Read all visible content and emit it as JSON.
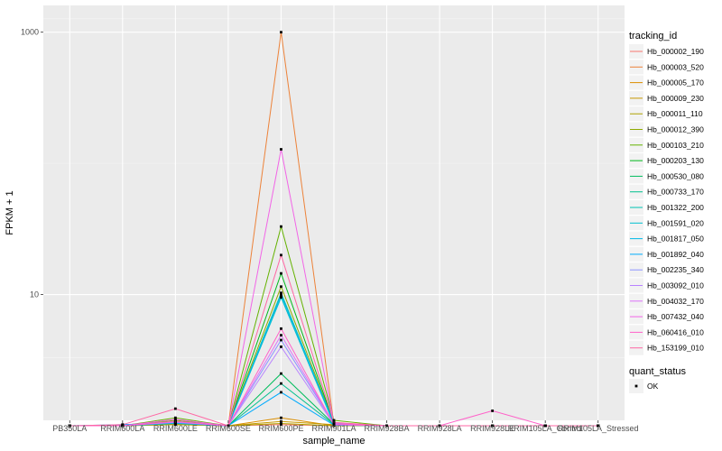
{
  "chart_data": {
    "type": "line",
    "xlabel": "sample_name",
    "ylabel": "FPKM + 1",
    "y_scale": "log10",
    "ylim": [
      1.1,
      1600
    ],
    "y_ticks": [
      10,
      1000
    ],
    "y_tick_labels": [
      "10",
      "1000"
    ],
    "grid": true,
    "background": "#ebebeb",
    "legend_position": "right",
    "categories": [
      "PB350LA",
      "RRIM600LA",
      "RRIM600LE",
      "RRIM600SE",
      "RRIM600PE",
      "RRIM901LA",
      "RRIM928BA",
      "RRIM928LA",
      "RRIM928LE",
      "RRIM105LA_Control",
      "RRIM105LA_Stressed"
    ],
    "legend": {
      "title": "tracking_id",
      "quant_title": "quant_status",
      "quant_label": "OK"
    },
    "series": [
      {
        "name": "Hb_000002_190",
        "color": "#F8766D",
        "values": [
          1,
          1,
          1.05,
          1,
          1.02,
          1,
          1,
          1,
          1,
          1,
          1
        ]
      },
      {
        "name": "Hb_000003_520",
        "color": "#EC8239",
        "values": [
          1,
          1,
          1.02,
          1,
          1000,
          1.02,
          1,
          1,
          1,
          1,
          1
        ]
      },
      {
        "name": "Hb_000005_170",
        "color": "#DB8E00",
        "values": [
          1,
          1,
          1.03,
          1,
          1.15,
          1,
          1,
          1,
          1,
          1,
          1
        ]
      },
      {
        "name": "Hb_000009_230",
        "color": "#C79800",
        "values": [
          1,
          1,
          1.05,
          1,
          1.08,
          1.02,
          1,
          1,
          1,
          1,
          1
        ]
      },
      {
        "name": "Hb_000011_110",
        "color": "#AEA200",
        "values": [
          1,
          1,
          1.02,
          1,
          1.04,
          1,
          1,
          1,
          1,
          1,
          1
        ]
      },
      {
        "name": "Hb_000012_390",
        "color": "#8FAA00",
        "values": [
          1,
          1,
          1.1,
          1,
          11.5,
          1.05,
          1,
          1,
          1,
          1,
          1
        ]
      },
      {
        "name": "Hb_000103_210",
        "color": "#64B200",
        "values": [
          1,
          1,
          1.15,
          1,
          33,
          1.1,
          1,
          1,
          1,
          1,
          1
        ]
      },
      {
        "name": "Hb_000203_130",
        "color": "#00B81B",
        "values": [
          1,
          1,
          1.08,
          1,
          14.5,
          1.05,
          1,
          1,
          1,
          1,
          1
        ]
      },
      {
        "name": "Hb_000530_080",
        "color": "#00BD5C",
        "values": [
          1,
          1,
          1.05,
          1,
          2.5,
          1.03,
          1,
          1,
          1,
          1,
          1
        ]
      },
      {
        "name": "Hb_000733_170",
        "color": "#00C08E",
        "values": [
          1,
          1,
          1.05,
          1,
          2.1,
          1.02,
          1,
          1,
          1,
          1,
          1
        ]
      },
      {
        "name": "Hb_001322_200",
        "color": "#00C1B2",
        "values": [
          1,
          1,
          1.06,
          1,
          10.3,
          1.04,
          1,
          1,
          1,
          1,
          1
        ]
      },
      {
        "name": "Hb_001591_020",
        "color": "#00BFD0",
        "values": [
          1,
          1,
          1.04,
          1,
          9.5,
          1.02,
          1,
          1,
          1,
          1,
          1
        ]
      },
      {
        "name": "Hb_001817_050",
        "color": "#00B8E7",
        "values": [
          1,
          1,
          1.06,
          1,
          9.9,
          1.05,
          1,
          1,
          1,
          1,
          1
        ]
      },
      {
        "name": "Hb_001892_040",
        "color": "#00ABFD",
        "values": [
          1,
          1.02,
          1.05,
          1,
          1.8,
          1.01,
          1,
          1,
          1,
          1,
          1
        ]
      },
      {
        "name": "Hb_002235_340",
        "color": "#8B93FF",
        "values": [
          1,
          1,
          1.08,
          1,
          4.5,
          1.03,
          1,
          1,
          1,
          1,
          1
        ]
      },
      {
        "name": "Hb_003092_010",
        "color": "#B983FF",
        "values": [
          1,
          1,
          1.06,
          1,
          4.0,
          1.02,
          1,
          1,
          1,
          1,
          1
        ]
      },
      {
        "name": "Hb_004032_170",
        "color": "#DC71FA",
        "values": [
          1,
          1,
          1.07,
          1,
          4.9,
          1.03,
          1,
          1,
          1,
          1,
          1
        ]
      },
      {
        "name": "Hb_007432_040",
        "color": "#F265E7",
        "values": [
          1,
          1,
          1.12,
          1,
          128,
          1.04,
          1,
          1,
          1,
          1,
          1
        ]
      },
      {
        "name": "Hb_060416_010",
        "color": "#FF61C9",
        "values": [
          1,
          1,
          1.08,
          1,
          5.5,
          1.02,
          1,
          1,
          1.3,
          1,
          1
        ]
      },
      {
        "name": "Hb_153199_010",
        "color": "#FF67A4",
        "values": [
          1,
          1.02,
          1.35,
          1,
          20,
          1.06,
          1,
          1,
          1,
          1,
          1
        ]
      }
    ]
  }
}
